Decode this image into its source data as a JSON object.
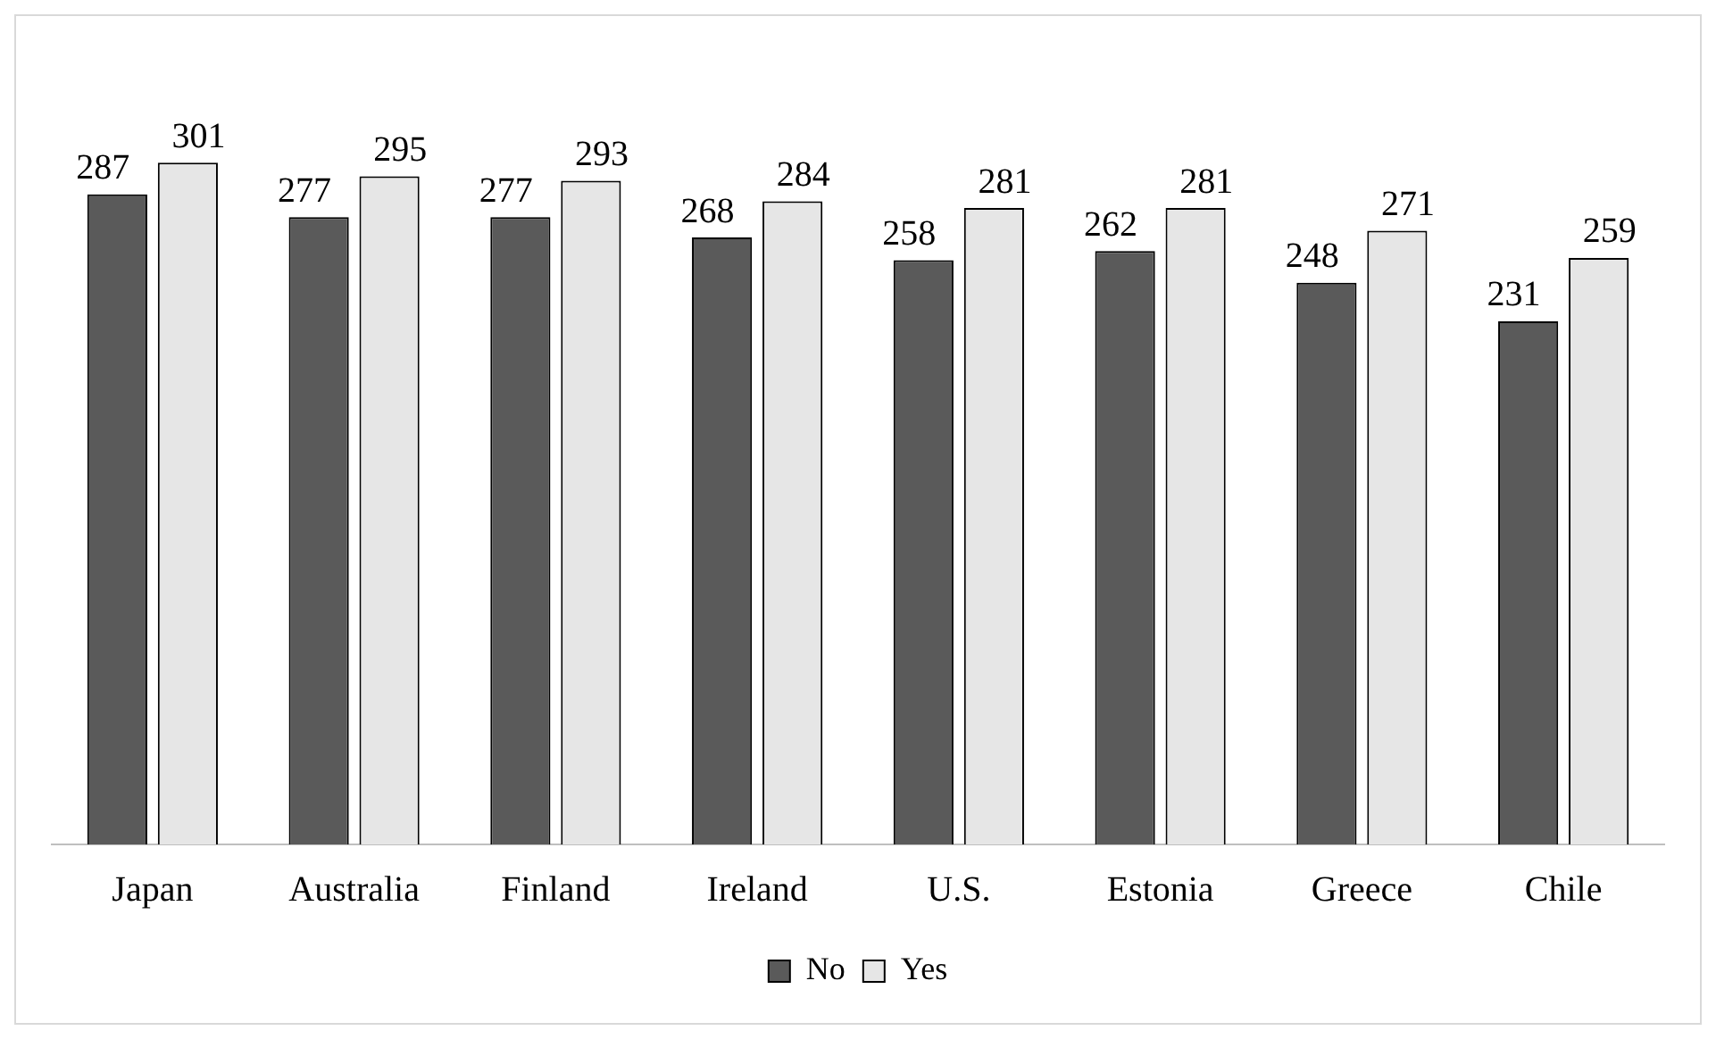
{
  "chart_data": {
    "type": "bar",
    "categories": [
      "Japan",
      "Australia",
      "Finland",
      "Ireland",
      "U.S.",
      "Estonia",
      "Greece",
      "Chile"
    ],
    "series": [
      {
        "name": "No",
        "color": "#5a5a5a",
        "values": [
          287,
          277,
          277,
          268,
          258,
          262,
          248,
          231
        ]
      },
      {
        "name": "Yes",
        "color": "#e6e6e6",
        "values": [
          301,
          295,
          293,
          284,
          281,
          281,
          271,
          259
        ]
      }
    ],
    "data_labels": true,
    "grid": false,
    "legend": "bottom"
  }
}
